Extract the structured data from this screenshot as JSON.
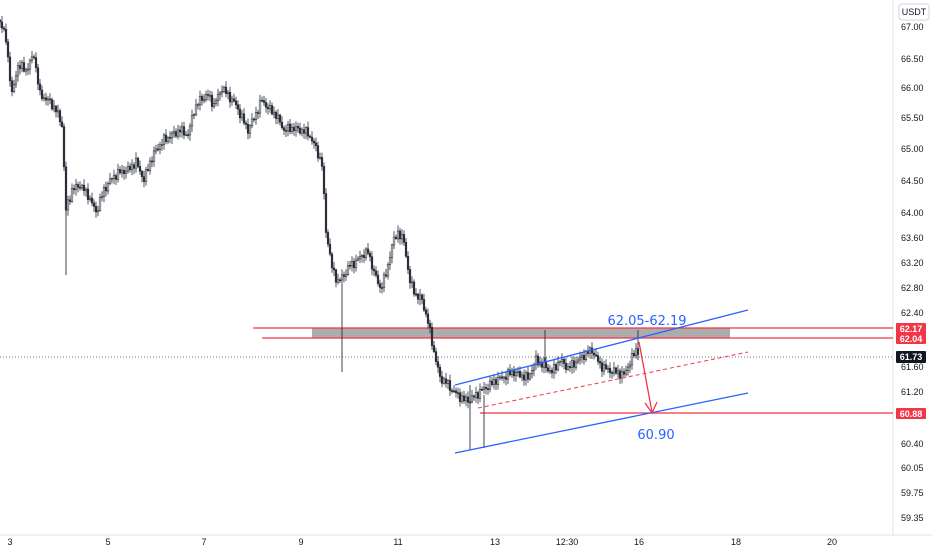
{
  "chart_data": {
    "type": "candlestick",
    "currency": "USDT",
    "y_ticks": [
      "67.00",
      "66.50",
      "66.00",
      "65.50",
      "65.00",
      "64.50",
      "64.00",
      "63.60",
      "63.20",
      "62.80",
      "62.40",
      "61.60",
      "61.20",
      "60.40",
      "60.05",
      "59.75",
      "59.35"
    ],
    "x_ticks": [
      "3",
      "5",
      "7",
      "9",
      "11",
      "13",
      "12:30",
      "16",
      "18",
      "20"
    ],
    "ylim": [
      59.2,
      67.4
    ],
    "last_price": "61.73",
    "last_price_value": 61.73,
    "levels": [
      {
        "label": "62.17",
        "value": 62.17,
        "color": "#f23645"
      },
      {
        "label": "62.04",
        "value": 62.04,
        "color": "#f23645"
      },
      {
        "label": "60.88",
        "value": 60.88,
        "color": "#f23645"
      }
    ],
    "resistance_zone": {
      "low": 62.05,
      "high": 62.19,
      "label": "62.05-62.19"
    },
    "target": {
      "value": 60.9,
      "label": "60.90"
    },
    "colors": {
      "candles": "#2a2e39",
      "channel": "#2962ff",
      "levels": "#f23645",
      "zone": "#9e9e9e",
      "last_price_bg": "#131722"
    }
  }
}
